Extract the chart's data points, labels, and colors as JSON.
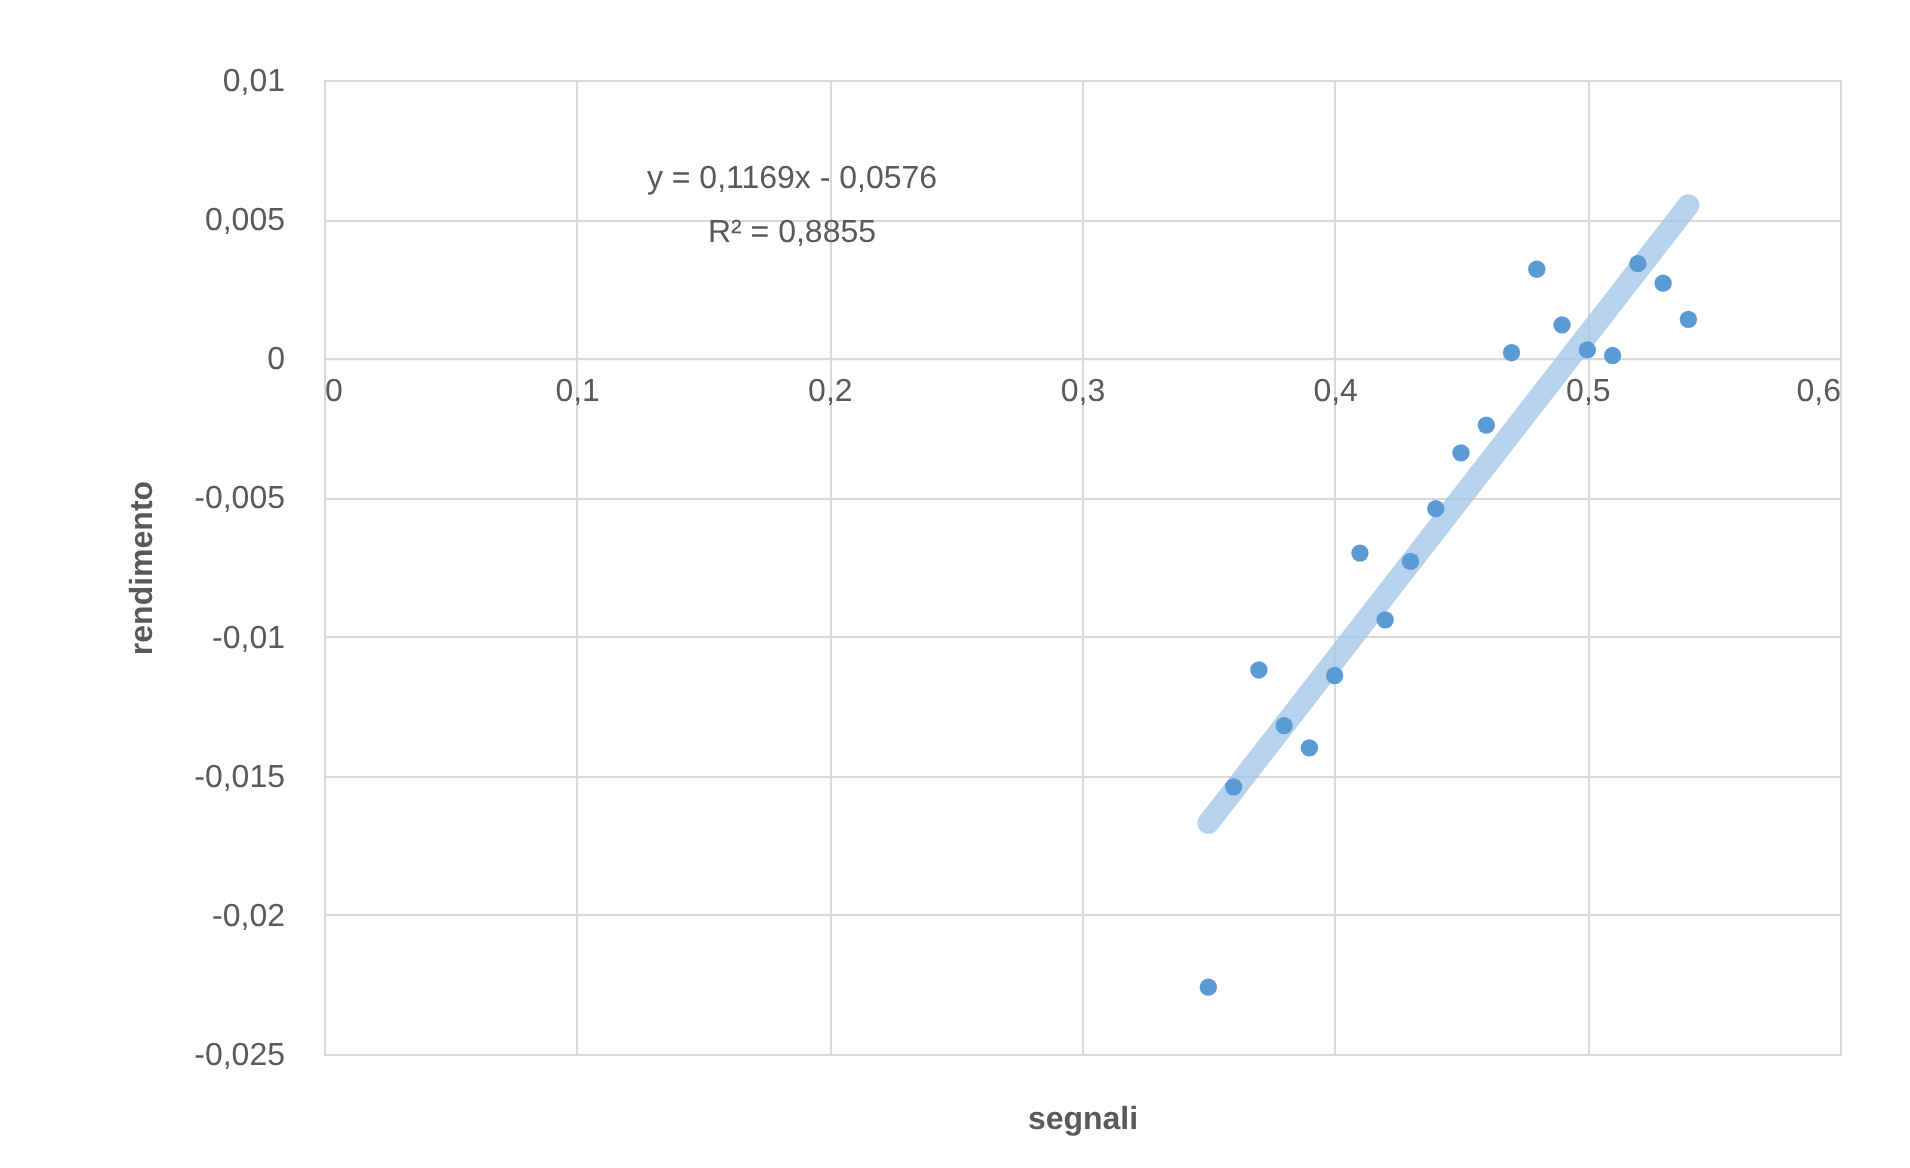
{
  "chart_data": {
    "type": "scatter",
    "xlabel": "segnali",
    "ylabel": "rendimento",
    "xlim": [
      0,
      0.6
    ],
    "ylim": [
      -0.025,
      0.01
    ],
    "xticks": [
      0,
      {
        "value": 0.1,
        "label": "0,1"
      },
      {
        "value": 0.2,
        "label": "0,2"
      },
      {
        "value": 0.3,
        "label": "0,3"
      },
      {
        "value": 0.4,
        "label": "0,4"
      },
      {
        "value": 0.5,
        "label": "0,5"
      },
      {
        "value": 0.6,
        "label": "0,6"
      }
    ],
    "yticks": [
      {
        "value": -0.025,
        "label": "-0,025"
      },
      {
        "value": -0.02,
        "label": "-0,02"
      },
      {
        "value": -0.015,
        "label": "-0,015"
      },
      {
        "value": -0.01,
        "label": "-0,01"
      },
      {
        "value": -0.005,
        "label": "-0,005"
      },
      0,
      {
        "value": 0.005,
        "label": "0,005"
      },
      {
        "value": 0.01,
        "label": "0,01"
      }
    ],
    "grid": true,
    "annotations": [
      "y = 0,1169x - 0,0576",
      "R² = 0,8855"
    ],
    "series": [
      {
        "type": "line",
        "color": "#9dc3e6",
        "x": [
          0.35,
          0.54
        ],
        "values": [
          -0.0167,
          0.0055
        ]
      },
      {
        "marker": "circle",
        "color": "#5b9bd5",
        "x": [
          0.35,
          0.36,
          0.37,
          0.38,
          0.39,
          0.4,
          0.41,
          0.42,
          0.43,
          0.44,
          0.45,
          0.46,
          0.47,
          0.48,
          0.49,
          0.5,
          0.51,
          0.52,
          0.53,
          0.54
        ],
        "values": [
          -0.0226,
          -0.0154,
          -0.0112,
          -0.0132,
          -0.014,
          -0.0114,
          -0.007,
          -0.0094,
          -0.0073,
          -0.0054,
          -0.0034,
          -0.0024,
          0.0002,
          0.0032,
          0.0012,
          0.0003,
          0.0001,
          0.0034,
          0.0027,
          0.0014
        ]
      }
    ]
  }
}
